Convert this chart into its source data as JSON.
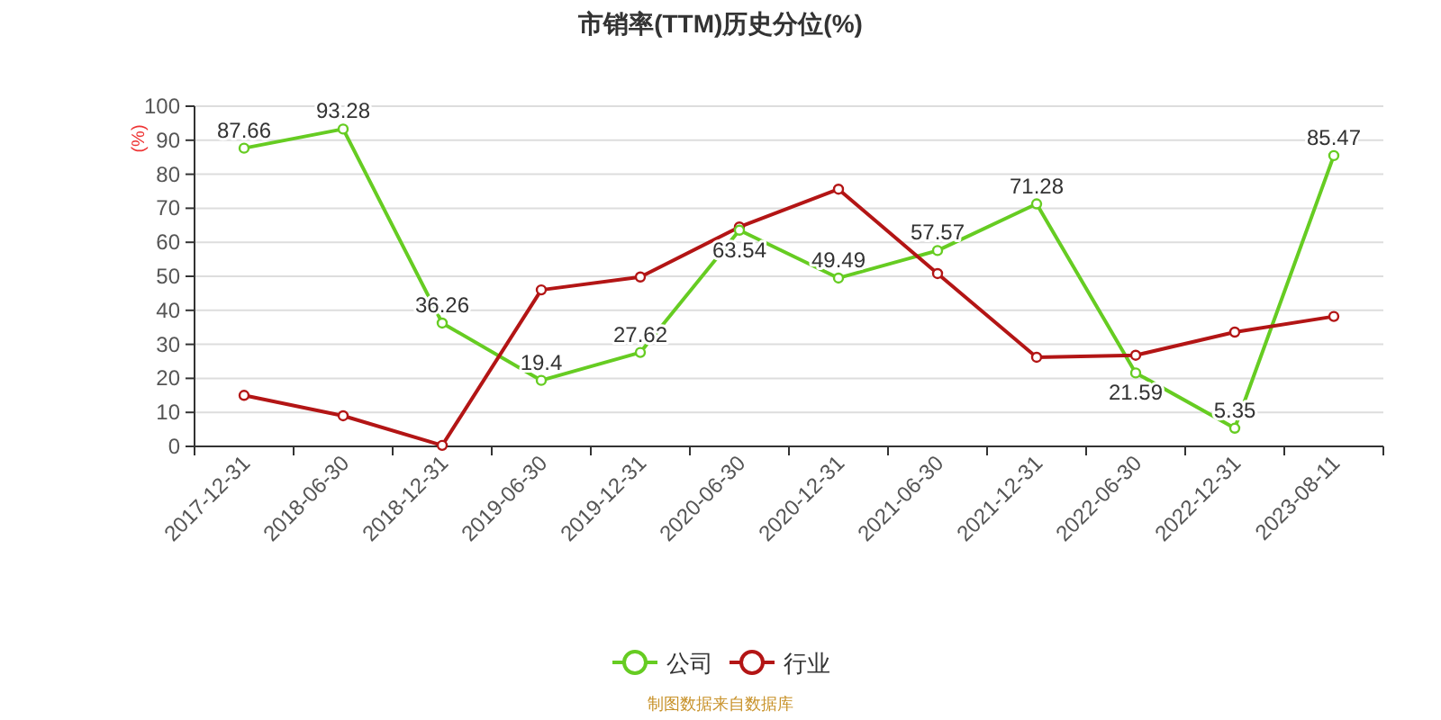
{
  "chart_data": {
    "type": "line",
    "title": "市销率(TTM)历史分位(%)",
    "ylabel": "(%)",
    "categories": [
      "2017-12-31",
      "2018-06-30",
      "2018-12-31",
      "2019-06-30",
      "2019-12-31",
      "2020-06-30",
      "2020-12-31",
      "2021-06-30",
      "2021-12-31",
      "2022-06-30",
      "2022-12-31",
      "2023-08-11"
    ],
    "series": [
      {
        "name": "公司",
        "color": "#66cc22",
        "values": [
          87.66,
          93.28,
          36.26,
          19.4,
          27.62,
          63.54,
          49.49,
          57.57,
          71.28,
          21.59,
          5.35,
          85.47
        ],
        "data_labels": true
      },
      {
        "name": "行业",
        "color": "#b31515",
        "values": [
          15,
          9,
          0.3,
          46,
          49.8,
          64.5,
          75.6,
          50.8,
          26.2,
          26.8,
          33.6,
          38.2
        ]
      }
    ],
    "ylim": [
      0,
      100
    ],
    "yticks": [
      0,
      10,
      20,
      30,
      40,
      50,
      60,
      70,
      80,
      90,
      100
    ],
    "grid": "y",
    "legend": "bottom",
    "marker": "circle",
    "annotations": [
      "制图数据来自数据库"
    ]
  }
}
